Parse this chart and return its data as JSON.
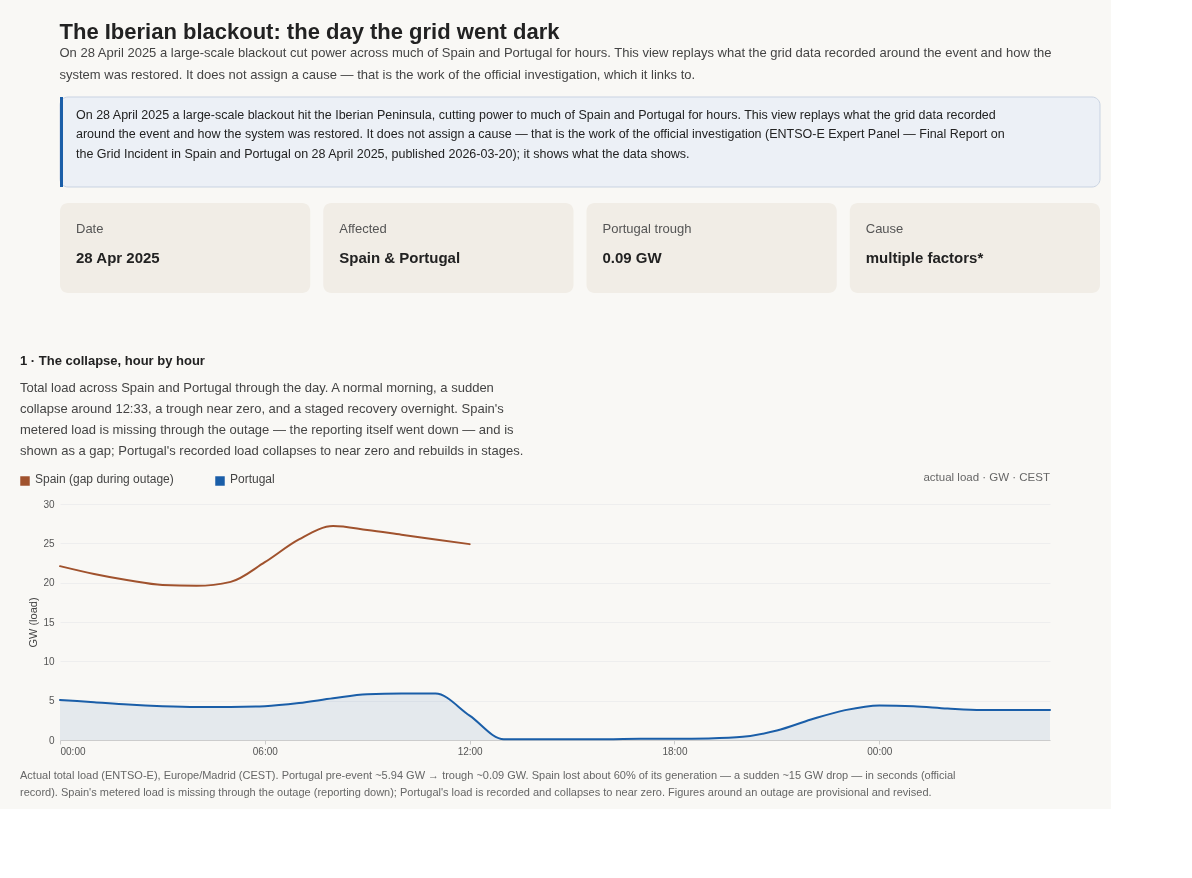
{
  "chart_data": [
    {
      "type": "other",
      "title": "The Iberian blackout: the day the grid went dark",
      "subtitle": "On 28 April 2025 a large-scale blackout cut power across much of Spain and Portugal for hours. This view replays what the grid data recorded around the event and how the system was restored. It does not assign a cause — that is the work of the official investigation, which it links to.",
      "annotations": [
        "On 28 April 2025 a large-scale blackout hit the Iberian Peninsula, cutting power to much of Spain and Portugal for hours. This view replays what the grid data recorded around the event and how the system was restored. It does not assign a cause — that is the work of the official investigation (ENTSO-E Expert Panel — Final Report on the Grid Incident in Spain and Portugal on 28 April 2025, published 2026-03-20); it shows what the data shows.",
        "Date",
        "28 Apr 2025",
        "Affected",
        "Spain & Portugal",
        "Portugal trough",
        "0.09 GW",
        "Cause",
        "multiple factors*"
      ]
    },
    {
      "type": "line",
      "title": "1 · The collapse, hour by hour",
      "subtitle": "Total load across Spain and Portugal through the day. A normal morning, a sudden collapse around 12:33, a trough near zero, and a staged recovery overnight. Spain's metered load is missing through the outage — the reporting itself went down — and is shown as a gap; Portugal's recorded load collapses to near zero and rebuilds in stages.",
      "annotations": [
        "actual load · GW · CEST",
        "Actual total load (ENTSO-E), Europe/Madrid (CEST). Portugal pre-event ~5.94 GW → trough ~0.09 GW. Spain lost about 60% of its generation — a sudden ~15 GW drop — in seconds (official record). Spain's metered load is missing through the outage (reporting down); Portugal's load is recorded and collapses to near zero. Figures around an outage are provisional and revised."
      ],
      "ylabel": "GW (load)",
      "x": [
        0,
        1,
        2,
        3,
        4,
        5,
        6,
        7,
        8,
        9,
        10,
        11,
        12,
        13,
        14,
        15,
        16,
        17,
        18,
        19,
        20,
        21,
        22,
        23,
        24,
        25,
        26,
        27,
        28,
        29
      ],
      "xlim": [
        0,
        29
      ],
      "xticks": [
        {
          "value": 0,
          "label": "00:00"
        },
        {
          "value": 6,
          "label": "06:00"
        },
        {
          "value": 12,
          "label": "12:00"
        },
        {
          "value": 18,
          "label": "18:00"
        },
        {
          "value": 24,
          "label": "00:00"
        }
      ],
      "ylim": [
        0,
        30
      ],
      "yticks": [
        0,
        5,
        10,
        15,
        20,
        25,
        30
      ],
      "grid": "y",
      "legend": "top left",
      "marker": "none",
      "line_style": "solid",
      "series": [
        {
          "name": "Spain (gap during outage)",
          "type": "line",
          "color": "#a0522d",
          "values": [
            22.1,
            21.1,
            20.3,
            19.7,
            19.6,
            20.1,
            22.6,
            25.5,
            27.2,
            26.7,
            26.1,
            25.5,
            24.9,
            null,
            null,
            null,
            null,
            null,
            null,
            null,
            null,
            null,
            null,
            null,
            null,
            null,
            null,
            null,
            null,
            null
          ]
        },
        {
          "name": "Portugal",
          "type": "area",
          "color": "#1a5ea8",
          "values": [
            5.1,
            4.8,
            4.5,
            4.3,
            4.2,
            4.2,
            4.3,
            4.7,
            5.3,
            5.8,
            5.9,
            5.9,
            3.1,
            0.09,
            0.1,
            0.1,
            0.1,
            0.15,
            0.15,
            0.2,
            0.4,
            1.2,
            2.6,
            3.8,
            4.4,
            4.3,
            4.0,
            3.8,
            3.8,
            3.8
          ]
        }
      ]
    }
  ]
}
